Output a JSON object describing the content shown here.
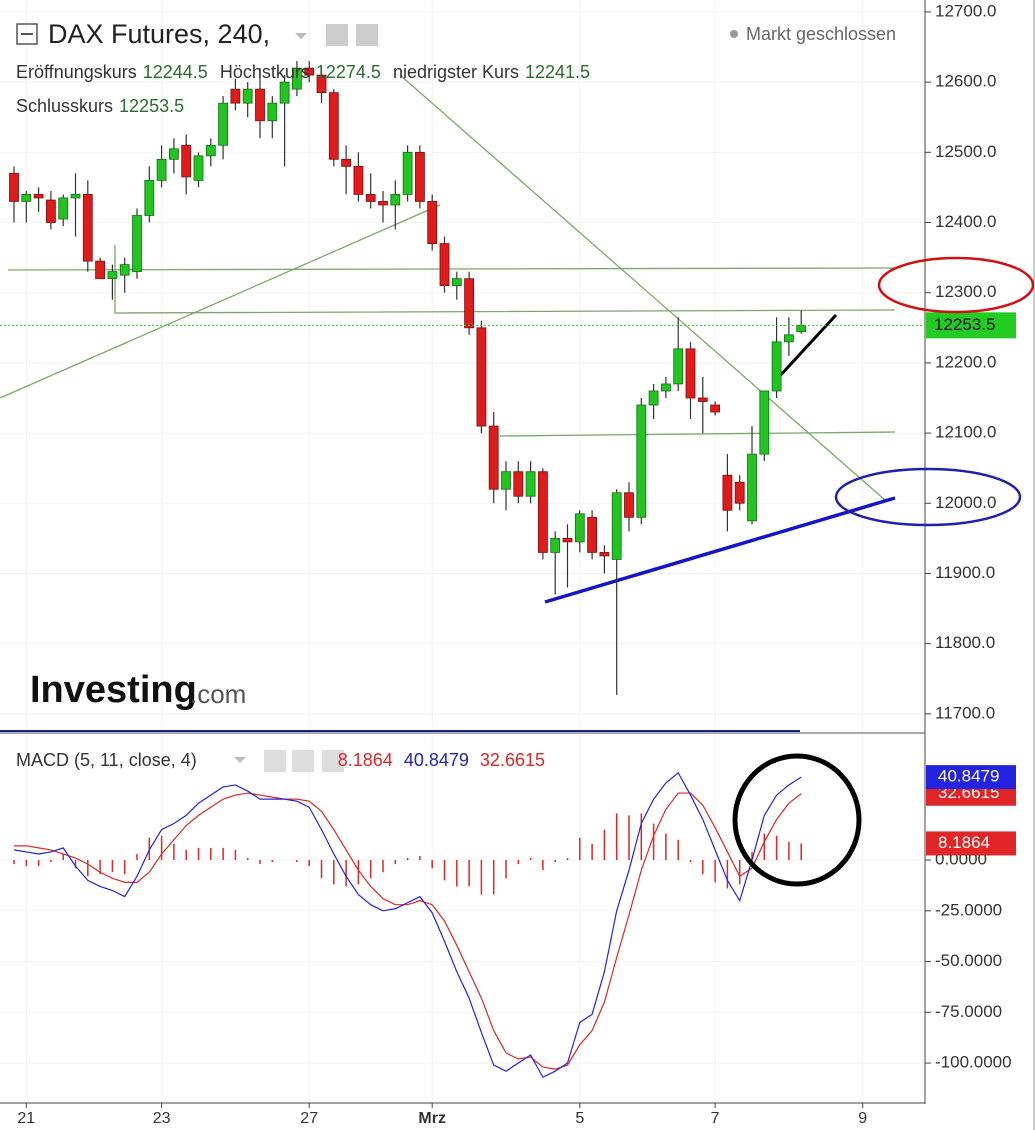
{
  "chart_data": [
    {
      "type": "candlestick",
      "title": "DAX Futures, 240,",
      "status": "Markt geschlossen",
      "open_label": "Eröffnungskurs",
      "high_label": "Höchstkurs",
      "low_label": "niedrigster Kurs",
      "close_label": "Schlusskurs",
      "watermark_brand": "Investing",
      "watermark_suffix": ".com",
      "up_color": "#22c422",
      "down_color": "#e01b1b",
      "last_price_color": "#22cc22",
      "grid": true,
      "categories": [
        null,
        "21",
        null,
        null,
        null,
        null,
        null,
        null,
        null,
        null,
        null,
        null,
        "23",
        null,
        null,
        null,
        null,
        null,
        null,
        null,
        null,
        null,
        null,
        null,
        "27",
        null,
        null,
        null,
        null,
        null,
        null,
        null,
        null,
        null,
        "Mrz",
        null,
        null,
        null,
        null,
        null,
        null,
        null,
        null,
        null,
        null,
        null,
        "5",
        null,
        null,
        null,
        null,
        null,
        null,
        null,
        null,
        null,
        null,
        "7",
        null,
        null,
        null,
        null,
        null,
        null,
        null,
        null,
        null,
        null,
        null,
        "9",
        null,
        null,
        null,
        null
      ],
      "open": [
        12470,
        12430,
        12440,
        12432,
        12405,
        12435,
        12440,
        12345,
        12320,
        12325,
        12330,
        12410,
        12460,
        12490,
        12510,
        12460,
        12495,
        12510,
        12590,
        12570,
        12590,
        12545,
        12570,
        12590,
        12620,
        12610,
        12585,
        12490,
        12480,
        12440,
        12430,
        12425,
        12440,
        12500,
        12430,
        12370,
        12310,
        12320,
        12250,
        12110,
        12020,
        12045,
        12010,
        12045,
        11930,
        11950,
        11945,
        11980,
        11930,
        11920,
        12015,
        11980,
        12140,
        12160,
        12170,
        12220,
        12150,
        12140,
        12040,
        12030,
        11975,
        12070,
        12160,
        12230,
        12244.5,
        null,
        null,
        null,
        null,
        null,
        null,
        null,
        null,
        null
      ],
      "high": [
        12480,
        12445,
        12450,
        12445,
        12440,
        12470,
        12460,
        12350,
        12340,
        12350,
        12420,
        12480,
        12510,
        12520,
        12525,
        12500,
        12520,
        12580,
        12605,
        12600,
        12620,
        12580,
        12610,
        12630,
        12630,
        12615,
        12590,
        12510,
        12500,
        12470,
        12445,
        12460,
        12510,
        12510,
        12440,
        12380,
        12330,
        12330,
        12260,
        12130,
        12060,
        12060,
        12060,
        12050,
        11960,
        11970,
        11990,
        11990,
        11940,
        12020,
        12030,
        12150,
        12170,
        12180,
        12265,
        12230,
        12180,
        12145,
        12070,
        12040,
        12110,
        12160,
        12265,
        12265,
        12274.5,
        null,
        null,
        null,
        null,
        null,
        null,
        null,
        null,
        null
      ],
      "low": [
        12400,
        12400,
        12415,
        12390,
        12395,
        12380,
        12330,
        12320,
        12290,
        12300,
        12320,
        12400,
        12450,
        12470,
        12440,
        12450,
        12480,
        12490,
        12560,
        12550,
        12520,
        12520,
        12480,
        12580,
        12600,
        12570,
        12480,
        12440,
        12430,
        12420,
        12400,
        12390,
        12430,
        12420,
        12360,
        12300,
        12290,
        12240,
        12100,
        12000,
        11990,
        12000,
        12000,
        11920,
        11870,
        11880,
        11930,
        11920,
        11900,
        11727,
        11960,
        11970,
        12120,
        12150,
        12160,
        12120,
        12100,
        12125,
        11960,
        11990,
        11970,
        12060,
        12150,
        12210,
        12241.5,
        null,
        null,
        null,
        null,
        null,
        null,
        null,
        null,
        null
      ],
      "close": [
        12430,
        12440,
        12435,
        12400,
        12435,
        12440,
        12345,
        12320,
        12330,
        12340,
        12410,
        12460,
        12490,
        12505,
        12465,
        12495,
        12510,
        12570,
        12570,
        12590,
        12545,
        12570,
        12600,
        12620,
        12610,
        12585,
        12490,
        12480,
        12440,
        12430,
        12425,
        12440,
        12500,
        12430,
        12370,
        12310,
        12320,
        12250,
        12110,
        12020,
        12045,
        12010,
        12045,
        11930,
        11950,
        11945,
        11985,
        11930,
        11925,
        12015,
        11980,
        12140,
        12160,
        12170,
        12220,
        12150,
        12145,
        12130,
        11990,
        12000,
        12070,
        12160,
        12230,
        12240,
        12253.5,
        null,
        null,
        null,
        null,
        null,
        null,
        null,
        null,
        null
      ],
      "ylim": [
        11677,
        12717
      ],
      "yticks": [
        {
          "value": 11700,
          "label": "11700.0"
        },
        {
          "value": 11800,
          "label": "11800.0"
        },
        {
          "value": 11900,
          "label": "11900.0"
        },
        {
          "value": 12000,
          "label": "12000.0"
        },
        {
          "value": 12100,
          "label": "12100.0"
        },
        {
          "value": 12200,
          "label": "12200.0"
        },
        {
          "value": 12300,
          "label": "12300.0"
        },
        {
          "value": 12400,
          "label": "12400.0"
        },
        {
          "value": 12500,
          "label": "12500.0"
        },
        {
          "value": 12600,
          "label": "12600.0"
        },
        {
          "value": 12700,
          "label": "12700.0"
        }
      ]
    },
    {
      "type": "macd",
      "title": "MACD (5, 11, close, 4)",
      "macd_color": "#2323e0",
      "signal_color": "#e02626",
      "histogram_color": "#e02626",
      "macd_values": [
        5,
        4,
        3,
        4,
        6,
        -3,
        -10,
        -13,
        -15,
        -18,
        -8,
        5,
        15,
        18,
        22,
        28,
        32,
        36,
        37,
        34,
        30,
        30,
        30,
        29,
        26,
        15,
        3,
        -8,
        -17,
        -22,
        -25,
        -24,
        -21,
        -18,
        -26,
        -40,
        -55,
        -68,
        -85,
        -101,
        -104,
        -100,
        -96,
        -107,
        -104,
        -100,
        -80,
        -76,
        -55,
        -25,
        -5,
        18,
        30,
        38,
        43,
        32,
        20,
        5,
        -10,
        -20,
        0,
        22,
        32,
        37,
        40.8479,
        null,
        null,
        null,
        null,
        null,
        null,
        null,
        null,
        null
      ],
      "signal_values": [
        7,
        7,
        6,
        5,
        3,
        1,
        -2,
        -6,
        -9,
        -11,
        -11,
        -6,
        3,
        10,
        17,
        22,
        26,
        30,
        32,
        33,
        32,
        31,
        30,
        30,
        29,
        24,
        15,
        5,
        -5,
        -13,
        -19,
        -22,
        -22,
        -20,
        -22,
        -30,
        -42,
        -55,
        -68,
        -84,
        -95,
        -98,
        -97,
        -102,
        -103,
        -101,
        -91,
        -84,
        -70,
        -48,
        -27,
        -5,
        12,
        25,
        33,
        33,
        27,
        16,
        4,
        -8,
        -4,
        9,
        20,
        28,
        32.6615,
        null,
        null,
        null,
        null,
        null,
        null,
        null,
        null,
        null
      ],
      "histogram_values": [
        -2,
        -3,
        -3,
        -1,
        3,
        -4,
        -8,
        -7,
        -6,
        -7,
        3,
        11,
        12,
        8,
        5,
        6,
        6,
        6,
        5,
        1,
        -2,
        -1,
        0,
        -1,
        -3,
        -9,
        -12,
        -13,
        -12,
        -9,
        -6,
        -2,
        1,
        2,
        -4,
        -10,
        -13,
        -13,
        -17,
        -17,
        -9,
        -2,
        1,
        -5,
        -1,
        1,
        11,
        8,
        15,
        23,
        22,
        23,
        18,
        13,
        10,
        -1,
        -7,
        -11,
        -14,
        -12,
        4,
        13,
        12,
        9,
        8.1864,
        null,
        null,
        null,
        null,
        null,
        null,
        null,
        null,
        null
      ],
      "ylim": [
        -118.2,
        61.6
      ],
      "yticks": [
        {
          "value": 0,
          "label": "0.0000"
        },
        {
          "value": -25,
          "label": "-25.0000"
        },
        {
          "value": -50,
          "label": "-50.0000"
        },
        {
          "value": -75,
          "label": "-75.0000"
        },
        {
          "value": -100,
          "label": "-100.0000"
        }
      ]
    }
  ]
}
